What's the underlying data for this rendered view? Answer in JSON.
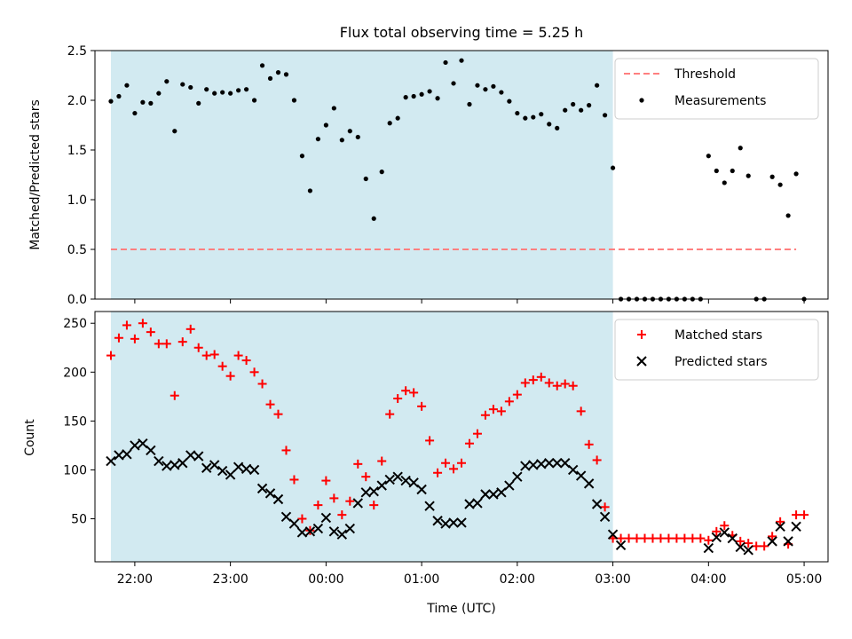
{
  "title": "Flux total observing time = 5.25 h",
  "xlabel": "Time (UTC)",
  "x_ticks": [
    "22:00",
    "23:00",
    "00:00",
    "01:00",
    "02:00",
    "03:00",
    "04:00",
    "05:00"
  ],
  "colors": {
    "shade": "#add8e6",
    "threshold": "#ff7f7f",
    "matched": "#ff0000",
    "predicted": "#000000",
    "measurement": "#000000"
  },
  "chart_data": [
    {
      "type": "scatter",
      "ylabel": "Matched/Predicted stars",
      "ylim": [
        0,
        2.5
      ],
      "y_ticks": [
        "0.0",
        "0.5",
        "1.0",
        "1.5",
        "2.0",
        "2.5"
      ],
      "shaded_span": [
        "21:45",
        "03:00"
      ],
      "threshold": 0.5,
      "threshold_x": [
        "21:45",
        "04:55"
      ],
      "legend": [
        "Threshold",
        "Measurements"
      ],
      "legend_position": "top-right",
      "series": [
        {
          "name": "Measurements",
          "values": [
            [
              "21:45",
              1.99
            ],
            [
              "21:50",
              2.04
            ],
            [
              "21:55",
              2.15
            ],
            [
              "22:00",
              1.87
            ],
            [
              "22:05",
              1.98
            ],
            [
              "22:10",
              1.97
            ],
            [
              "22:15",
              2.07
            ],
            [
              "22:20",
              2.19
            ],
            [
              "22:25",
              1.69
            ],
            [
              "22:30",
              2.16
            ],
            [
              "22:35",
              2.13
            ],
            [
              "22:40",
              1.97
            ],
            [
              "22:45",
              2.11
            ],
            [
              "22:50",
              2.07
            ],
            [
              "22:55",
              2.08
            ],
            [
              "23:00",
              2.07
            ],
            [
              "23:05",
              2.1
            ],
            [
              "23:10",
              2.11
            ],
            [
              "23:15",
              2.0
            ],
            [
              "23:20",
              2.35
            ],
            [
              "23:25",
              2.22
            ],
            [
              "23:30",
              2.28
            ],
            [
              "23:35",
              2.26
            ],
            [
              "23:40",
              2.0
            ],
            [
              "23:45",
              1.44
            ],
            [
              "23:50",
              1.09
            ],
            [
              "23:55",
              1.61
            ],
            [
              "00:00",
              1.75
            ],
            [
              "00:05",
              1.92
            ],
            [
              "00:10",
              1.6
            ],
            [
              "00:15",
              1.69
            ],
            [
              "00:20",
              1.63
            ],
            [
              "00:25",
              1.21
            ],
            [
              "00:30",
              0.81
            ],
            [
              "00:35",
              1.28
            ],
            [
              "00:40",
              1.77
            ],
            [
              "00:45",
              1.82
            ],
            [
              "00:50",
              2.03
            ],
            [
              "00:55",
              2.04
            ],
            [
              "01:00",
              2.06
            ],
            [
              "01:05",
              2.09
            ],
            [
              "01:10",
              2.02
            ],
            [
              "01:15",
              2.38
            ],
            [
              "01:20",
              2.17
            ],
            [
              "01:25",
              2.4
            ],
            [
              "01:30",
              1.96
            ],
            [
              "01:35",
              2.15
            ],
            [
              "01:40",
              2.11
            ],
            [
              "01:45",
              2.14
            ],
            [
              "01:50",
              2.08
            ],
            [
              "01:55",
              1.99
            ],
            [
              "02:00",
              1.87
            ],
            [
              "02:05",
              1.82
            ],
            [
              "02:10",
              1.83
            ],
            [
              "02:15",
              1.86
            ],
            [
              "02:20",
              1.76
            ],
            [
              "02:25",
              1.72
            ],
            [
              "02:30",
              1.9
            ],
            [
              "02:35",
              1.96
            ],
            [
              "02:40",
              1.9
            ],
            [
              "02:45",
              1.95
            ],
            [
              "02:50",
              2.15
            ],
            [
              "02:55",
              1.85
            ],
            [
              "03:00",
              1.32
            ],
            [
              "03:05",
              0.0
            ],
            [
              "03:10",
              0.0
            ],
            [
              "03:15",
              0.0
            ],
            [
              "03:20",
              0.0
            ],
            [
              "03:25",
              0.0
            ],
            [
              "03:30",
              0.0
            ],
            [
              "03:35",
              0.0
            ],
            [
              "03:40",
              0.0
            ],
            [
              "03:45",
              0.0
            ],
            [
              "03:50",
              0.0
            ],
            [
              "03:55",
              0.0
            ],
            [
              "04:00",
              1.44
            ],
            [
              "04:05",
              1.29
            ],
            [
              "04:10",
              1.17
            ],
            [
              "04:15",
              1.29
            ],
            [
              "04:20",
              1.52
            ],
            [
              "04:25",
              1.24
            ],
            [
              "04:30",
              0.0
            ],
            [
              "04:35",
              0.0
            ],
            [
              "04:40",
              1.23
            ],
            [
              "04:45",
              1.15
            ],
            [
              "04:50",
              0.84
            ],
            [
              "04:55",
              1.26
            ],
            [
              "05:00",
              0.0
            ]
          ]
        }
      ]
    },
    {
      "type": "scatter",
      "ylabel": "Count",
      "ylim": [
        6,
        262
      ],
      "y_ticks": [
        "50",
        "100",
        "150",
        "200",
        "250"
      ],
      "shaded_span": [
        "21:45",
        "03:00"
      ],
      "legend": [
        "Matched stars",
        "Predicted stars"
      ],
      "legend_position": "top-right",
      "series": [
        {
          "name": "Matched stars",
          "values": [
            [
              "21:45",
              217
            ],
            [
              "21:50",
              235
            ],
            [
              "21:55",
              248
            ],
            [
              "22:00",
              234
            ],
            [
              "22:05",
              250
            ],
            [
              "22:10",
              241
            ],
            [
              "22:15",
              229
            ],
            [
              "22:20",
              229
            ],
            [
              "22:25",
              176
            ],
            [
              "22:30",
              231
            ],
            [
              "22:35",
              244
            ],
            [
              "22:40",
              225
            ],
            [
              "22:45",
              217
            ],
            [
              "22:50",
              218
            ],
            [
              "22:55",
              206
            ],
            [
              "23:00",
              196
            ],
            [
              "23:05",
              217
            ],
            [
              "23:10",
              212
            ],
            [
              "23:15",
              200
            ],
            [
              "23:20",
              188
            ],
            [
              "23:25",
              167
            ],
            [
              "23:30",
              157
            ],
            [
              "23:35",
              120
            ],
            [
              "23:40",
              90
            ],
            [
              "23:45",
              50
            ],
            [
              "23:50",
              38
            ],
            [
              "23:55",
              64
            ],
            [
              "00:00",
              89
            ],
            [
              "00:05",
              71
            ],
            [
              "00:10",
              54
            ],
            [
              "00:15",
              68
            ],
            [
              "00:20",
              106
            ],
            [
              "00:25",
              93
            ],
            [
              "00:30",
              64
            ],
            [
              "00:35",
              109
            ],
            [
              "00:40",
              157
            ],
            [
              "00:45",
              173
            ],
            [
              "00:50",
              181
            ],
            [
              "00:55",
              179
            ],
            [
              "01:00",
              165
            ],
            [
              "01:05",
              130
            ],
            [
              "01:10",
              97
            ],
            [
              "01:15",
              107
            ],
            [
              "01:20",
              101
            ],
            [
              "01:25",
              107
            ],
            [
              "01:30",
              127
            ],
            [
              "01:35",
              137
            ],
            [
              "01:40",
              156
            ],
            [
              "01:45",
              162
            ],
            [
              "01:50",
              160
            ],
            [
              "01:55",
              170
            ],
            [
              "02:00",
              177
            ],
            [
              "02:05",
              189
            ],
            [
              "02:10",
              192
            ],
            [
              "02:15",
              195
            ],
            [
              "02:20",
              189
            ],
            [
              "02:25",
              186
            ],
            [
              "02:30",
              188
            ],
            [
              "02:35",
              186
            ],
            [
              "02:40",
              160
            ],
            [
              "02:45",
              126
            ],
            [
              "02:50",
              110
            ],
            [
              "02:55",
              62
            ],
            [
              "03:00",
              30
            ],
            [
              "03:05",
              30
            ],
            [
              "03:10",
              30
            ],
            [
              "03:15",
              30
            ],
            [
              "03:20",
              30
            ],
            [
              "03:25",
              30
            ],
            [
              "03:30",
              30
            ],
            [
              "03:35",
              30
            ],
            [
              "03:40",
              30
            ],
            [
              "03:45",
              30
            ],
            [
              "03:50",
              30
            ],
            [
              "03:55",
              30
            ],
            [
              "04:00",
              28
            ],
            [
              "04:05",
              37
            ],
            [
              "04:10",
              43
            ],
            [
              "04:15",
              33
            ],
            [
              "04:20",
              27
            ],
            [
              "04:25",
              25
            ],
            [
              "04:30",
              22
            ],
            [
              "04:35",
              22
            ],
            [
              "04:40",
              32
            ],
            [
              "04:45",
              47
            ],
            [
              "04:50",
              24
            ],
            [
              "04:55",
              54
            ],
            [
              "05:00",
              54
            ]
          ]
        },
        {
          "name": "Predicted stars",
          "values": [
            [
              "21:45",
              109
            ],
            [
              "21:50",
              115
            ],
            [
              "21:55",
              116
            ],
            [
              "22:00",
              125
            ],
            [
              "22:05",
              127
            ],
            [
              "22:10",
              120
            ],
            [
              "22:15",
              109
            ],
            [
              "22:20",
              104
            ],
            [
              "22:25",
              105
            ],
            [
              "22:30",
              107
            ],
            [
              "22:35",
              115
            ],
            [
              "22:40",
              114
            ],
            [
              "22:45",
              102
            ],
            [
              "22:50",
              105
            ],
            [
              "22:55",
              99
            ],
            [
              "23:00",
              95
            ],
            [
              "23:05",
              103
            ],
            [
              "23:10",
              101
            ],
            [
              "23:15",
              100
            ],
            [
              "23:20",
              81
            ],
            [
              "23:25",
              76
            ],
            [
              "23:30",
              70
            ],
            [
              "23:35",
              52
            ],
            [
              "23:40",
              45
            ],
            [
              "23:45",
              36
            ],
            [
              "23:50",
              37
            ],
            [
              "23:55",
              40
            ],
            [
              "00:00",
              51
            ],
            [
              "00:05",
              37
            ],
            [
              "00:10",
              34
            ],
            [
              "00:15",
              40
            ],
            [
              "00:20",
              66
            ],
            [
              "00:25",
              77
            ],
            [
              "00:30",
              78
            ],
            [
              "00:35",
              84
            ],
            [
              "00:40",
              90
            ],
            [
              "00:45",
              93
            ],
            [
              "00:50",
              89
            ],
            [
              "00:55",
              87
            ],
            [
              "01:00",
              80
            ],
            [
              "01:05",
              63
            ],
            [
              "01:10",
              48
            ],
            [
              "01:15",
              45
            ],
            [
              "01:20",
              46
            ],
            [
              "01:25",
              46
            ],
            [
              "01:30",
              65
            ],
            [
              "01:35",
              66
            ],
            [
              "01:40",
              75
            ],
            [
              "01:45",
              75
            ],
            [
              "01:50",
              77
            ],
            [
              "01:55",
              84
            ],
            [
              "02:00",
              93
            ],
            [
              "02:05",
              104
            ],
            [
              "02:10",
              105
            ],
            [
              "02:15",
              106
            ],
            [
              "02:20",
              107
            ],
            [
              "02:25",
              107
            ],
            [
              "02:30",
              107
            ],
            [
              "02:35",
              100
            ],
            [
              "02:40",
              94
            ],
            [
              "02:45",
              86
            ],
            [
              "02:50",
              65
            ],
            [
              "02:55",
              52
            ],
            [
              "03:00",
              34
            ],
            [
              "03:05",
              23
            ],
            [
              "04:00",
              20
            ],
            [
              "04:05",
              31
            ],
            [
              "04:10",
              36
            ],
            [
              "04:15",
              30
            ],
            [
              "04:20",
              21
            ],
            [
              "04:25",
              18
            ],
            [
              "04:40",
              27
            ],
            [
              "04:45",
              42
            ],
            [
              "04:50",
              27
            ],
            [
              "04:55",
              42
            ]
          ]
        }
      ]
    }
  ]
}
